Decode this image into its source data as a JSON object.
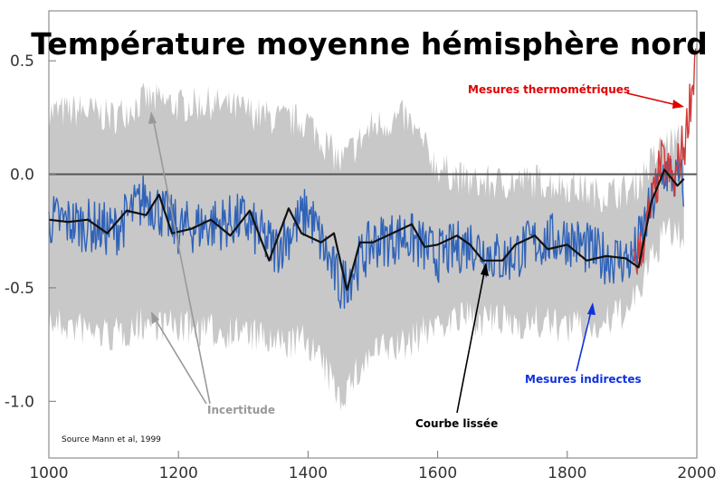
{
  "chart_data": {
    "type": "line",
    "title": "Température moyenne hémisphère nord",
    "xlim": [
      1000,
      2000
    ],
    "ylim": [
      -1.25,
      0.72
    ],
    "x_ticks": [
      1000,
      1200,
      1400,
      1600,
      1800,
      2000
    ],
    "y_ticks": [
      0.5,
      0.0,
      -0.5,
      -1.0
    ],
    "y_tick_labels": [
      "0.5",
      "0.0",
      "-0.5",
      "-1.0"
    ],
    "grid": false,
    "zero_line": 0.0,
    "series": [
      {
        "name": "Incertitude",
        "style": "band",
        "color": "#c8c8c8",
        "x": [
          1000,
          1050,
          1100,
          1150,
          1200,
          1250,
          1300,
          1350,
          1400,
          1450,
          1500,
          1550,
          1600,
          1650,
          1700,
          1750,
          1800,
          1850,
          1900,
          1950,
          1980
        ],
        "upper": [
          0.24,
          0.25,
          0.22,
          0.3,
          0.27,
          0.28,
          0.25,
          0.21,
          0.2,
          0.02,
          0.18,
          0.22,
          0.0,
          -0.07,
          -0.07,
          -0.06,
          -0.08,
          -0.12,
          -0.1,
          0.1,
          0.12
        ],
        "lower": [
          -0.62,
          -0.65,
          -0.68,
          -0.62,
          -0.64,
          -0.66,
          -0.66,
          -0.72,
          -0.7,
          -0.95,
          -0.75,
          -0.72,
          -0.62,
          -0.6,
          -0.62,
          -0.62,
          -0.64,
          -0.64,
          -0.55,
          -0.22,
          -0.25
        ]
      },
      {
        "name": "Mesures indirectes",
        "style": "noisy-line",
        "color": "#2f62b8",
        "x": [
          1000,
          1050,
          1100,
          1150,
          1200,
          1250,
          1300,
          1350,
          1400,
          1450,
          1500,
          1550,
          1600,
          1650,
          1700,
          1750,
          1800,
          1850,
          1900,
          1950,
          1980
        ],
        "values": [
          -0.2,
          -0.22,
          -0.25,
          -0.1,
          -0.24,
          -0.22,
          -0.2,
          -0.33,
          -0.16,
          -0.5,
          -0.3,
          -0.27,
          -0.36,
          -0.3,
          -0.38,
          -0.3,
          -0.28,
          -0.36,
          -0.38,
          0.02,
          -0.05
        ]
      },
      {
        "name": "Courbe lissée",
        "style": "line",
        "color": "#111111",
        "x": [
          1000,
          1030,
          1060,
          1090,
          1120,
          1150,
          1170,
          1190,
          1220,
          1250,
          1280,
          1310,
          1340,
          1370,
          1390,
          1420,
          1440,
          1460,
          1480,
          1500,
          1530,
          1560,
          1580,
          1600,
          1630,
          1650,
          1670,
          1700,
          1720,
          1750,
          1770,
          1800,
          1830,
          1860,
          1890,
          1910,
          1930,
          1950,
          1970,
          1980
        ],
        "values": [
          -0.2,
          -0.21,
          -0.2,
          -0.26,
          -0.16,
          -0.18,
          -0.09,
          -0.26,
          -0.24,
          -0.2,
          -0.27,
          -0.16,
          -0.38,
          -0.15,
          -0.26,
          -0.3,
          -0.26,
          -0.51,
          -0.3,
          -0.3,
          -0.26,
          -0.22,
          -0.32,
          -0.31,
          -0.27,
          -0.31,
          -0.38,
          -0.38,
          -0.31,
          -0.27,
          -0.33,
          -0.31,
          -0.38,
          -0.36,
          -0.37,
          -0.41,
          -0.12,
          0.02,
          -0.05,
          -0.02
        ]
      },
      {
        "name": "Mesures thermométriques",
        "style": "noisy-line",
        "color": "#d13a3a",
        "x": [
          1902,
          1915,
          1930,
          1945,
          1955,
          1965,
          1975,
          1982,
          1988,
          1994,
          1998
        ],
        "values": [
          -0.4,
          -0.32,
          -0.15,
          0.05,
          0.02,
          -0.05,
          0.1,
          0.14,
          0.3,
          0.4,
          0.55
        ]
      }
    ],
    "annotations": [
      {
        "text": "Mesures thermométriques",
        "color": "#e00000"
      },
      {
        "text": "Mesures indirectes",
        "color": "#1030e0"
      },
      {
        "text": "Courbe lissée",
        "color": "#000000"
      },
      {
        "text": "Incertitude",
        "color": "#999999"
      }
    ],
    "source": "Source Mann et al, 1999"
  }
}
